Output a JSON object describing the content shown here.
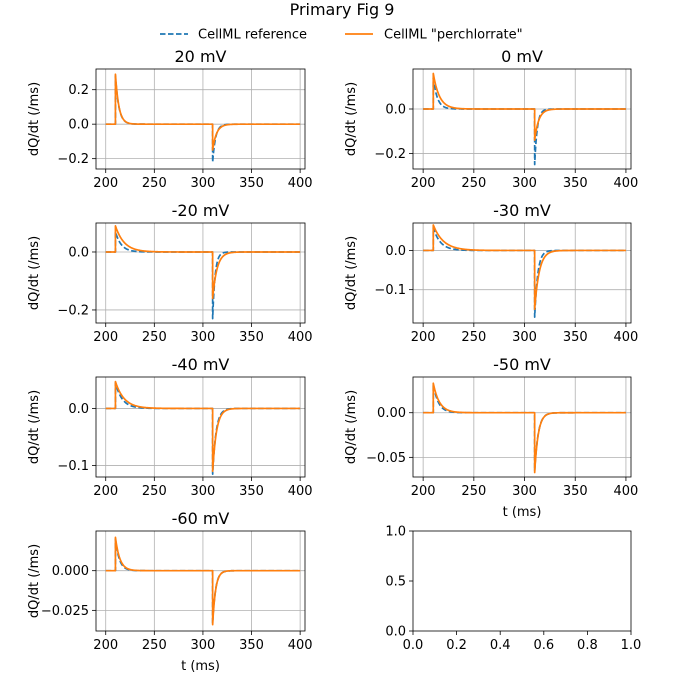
{
  "figure": {
    "title": "Primary Fig 9"
  },
  "legend": [
    {
      "label": "CellML reference",
      "color": "#1f77b4",
      "dashed": true
    },
    {
      "label": "CellML \"perchlorrate\"",
      "color": "#ff7f0e",
      "dashed": false
    }
  ],
  "chart_data": [
    {
      "type": "line",
      "title": "20 mV",
      "xlabel": "",
      "ylabel": "dQ/dt (/ms)",
      "xlim": [
        190,
        405
      ],
      "ylim": [
        -0.26,
        0.32
      ],
      "xticks": [
        200,
        250,
        300,
        350,
        400
      ],
      "xtick_labels": [
        "200",
        "250",
        "300",
        "350",
        "400"
      ],
      "yticks": [
        -0.2,
        0.0,
        0.2
      ],
      "ytick_labels": [
        "−0.2",
        "0.0",
        "0.2"
      ],
      "grid": true,
      "series": [
        {
          "name": "CellML reference",
          "color": "#1f77b4",
          "dashed": true,
          "on_peak": 0.28,
          "on_tau": 3.5,
          "off_peak": -0.22,
          "off_tau": 3.0
        },
        {
          "name": "CellML \"perchlorrate\"",
          "color": "#ff7f0e",
          "dashed": false,
          "on_peak": 0.29,
          "on_tau": 3.5,
          "off_peak": -0.15,
          "off_tau": 4.0
        }
      ]
    },
    {
      "type": "line",
      "title": "0 mV",
      "xlabel": "",
      "ylabel": "dQ/dt (/ms)",
      "xlim": [
        190,
        405
      ],
      "ylim": [
        -0.27,
        0.18
      ],
      "xticks": [
        200,
        250,
        300,
        350,
        400
      ],
      "xtick_labels": [
        "200",
        "250",
        "300",
        "350",
        "400"
      ],
      "yticks": [
        -0.2,
        0.0
      ],
      "ytick_labels": [
        "−0.2",
        "0.0"
      ],
      "grid": true,
      "series": [
        {
          "name": "CellML reference",
          "color": "#1f77b4",
          "dashed": true,
          "on_peak": 0.14,
          "on_tau": 4.0,
          "off_peak": -0.25,
          "off_tau": 2.5
        },
        {
          "name": "CellML \"perchlorrate\"",
          "color": "#ff7f0e",
          "dashed": false,
          "on_peak": 0.16,
          "on_tau": 6.0,
          "off_peak": -0.14,
          "off_tau": 4.0
        }
      ]
    },
    {
      "type": "line",
      "title": "-20 mV",
      "xlabel": "",
      "ylabel": "dQ/dt (/ms)",
      "xlim": [
        190,
        405
      ],
      "ylim": [
        -0.245,
        0.1
      ],
      "xticks": [
        200,
        250,
        300,
        350,
        400
      ],
      "xtick_labels": [
        "200",
        "250",
        "300",
        "350",
        "400"
      ],
      "yticks": [
        -0.2,
        0.0
      ],
      "ytick_labels": [
        "−0.2",
        "0.0"
      ],
      "grid": true,
      "series": [
        {
          "name": "CellML reference",
          "color": "#1f77b4",
          "dashed": true,
          "on_peak": 0.07,
          "on_tau": 6.0,
          "off_peak": -0.23,
          "off_tau": 2.5
        },
        {
          "name": "CellML \"perchlorrate\"",
          "color": "#ff7f0e",
          "dashed": false,
          "on_peak": 0.09,
          "on_tau": 9.0,
          "off_peak": -0.16,
          "off_tau": 4.5
        }
      ]
    },
    {
      "type": "line",
      "title": "-30 mV",
      "xlabel": "",
      "ylabel": "dQ/dt (/ms)",
      "xlim": [
        190,
        405
      ],
      "ylim": [
        -0.185,
        0.07
      ],
      "xticks": [
        200,
        250,
        300,
        350,
        400
      ],
      "xtick_labels": [
        "200",
        "250",
        "300",
        "350",
        "400"
      ],
      "yticks": [
        -0.1,
        0.0
      ],
      "ytick_labels": [
        "−0.1",
        "0.0"
      ],
      "grid": true,
      "series": [
        {
          "name": "CellML reference",
          "color": "#1f77b4",
          "dashed": true,
          "on_peak": 0.058,
          "on_tau": 7.0,
          "off_peak": -0.17,
          "off_tau": 3.0
        },
        {
          "name": "CellML \"perchlorrate\"",
          "color": "#ff7f0e",
          "dashed": false,
          "on_peak": 0.065,
          "on_tau": 10.0,
          "off_peak": -0.15,
          "off_tau": 4.5
        }
      ]
    },
    {
      "type": "line",
      "title": "-40 mV",
      "xlabel": "",
      "ylabel": "dQ/dt (/ms)",
      "xlim": [
        190,
        405
      ],
      "ylim": [
        -0.12,
        0.055
      ],
      "xticks": [
        200,
        250,
        300,
        350,
        400
      ],
      "xtick_labels": [
        "200",
        "250",
        "300",
        "350",
        "400"
      ],
      "yticks": [
        -0.1,
        0.0
      ],
      "ytick_labels": [
        "−0.1",
        "0.0"
      ],
      "grid": true,
      "series": [
        {
          "name": "CellML reference",
          "color": "#1f77b4",
          "dashed": true,
          "on_peak": 0.045,
          "on_tau": 7.0,
          "off_peak": -0.115,
          "off_tau": 3.5
        },
        {
          "name": "CellML \"perchlorrate\"",
          "color": "#ff7f0e",
          "dashed": false,
          "on_peak": 0.047,
          "on_tau": 9.0,
          "off_peak": -0.11,
          "off_tau": 4.0
        }
      ]
    },
    {
      "type": "line",
      "title": "-50 mV",
      "xlabel": "t (ms)",
      "ylabel": "dQ/dt (/ms)",
      "xlim": [
        190,
        405
      ],
      "ylim": [
        -0.072,
        0.04
      ],
      "xticks": [
        200,
        250,
        300,
        350,
        400
      ],
      "xtick_labels": [
        "200",
        "250",
        "300",
        "350",
        "400"
      ],
      "yticks": [
        -0.05,
        0.0
      ],
      "ytick_labels": [
        "−0.05",
        "0.00"
      ],
      "grid": true,
      "series": [
        {
          "name": "CellML reference",
          "color": "#1f77b4",
          "dashed": true,
          "on_peak": 0.032,
          "on_tau": 5.0,
          "off_peak": -0.065,
          "off_tau": 3.5
        },
        {
          "name": "CellML \"perchlorrate\"",
          "color": "#ff7f0e",
          "dashed": false,
          "on_peak": 0.033,
          "on_tau": 6.0,
          "off_peak": -0.067,
          "off_tau": 3.5
        }
      ]
    },
    {
      "type": "line",
      "title": "-60 mV",
      "xlabel": "t (ms)",
      "ylabel": "dQ/dt (/ms)",
      "xlim": [
        190,
        405
      ],
      "ylim": [
        -0.038,
        0.025
      ],
      "xticks": [
        200,
        250,
        300,
        350,
        400
      ],
      "xtick_labels": [
        "200",
        "250",
        "300",
        "350",
        "400"
      ],
      "yticks": [
        -0.025,
        0.0
      ],
      "ytick_labels": [
        "−0.025",
        "0.000"
      ],
      "grid": true,
      "series": [
        {
          "name": "CellML reference",
          "color": "#1f77b4",
          "dashed": true,
          "on_peak": 0.02,
          "on_tau": 4.0,
          "off_peak": -0.033,
          "off_tau": 3.0
        },
        {
          "name": "CellML \"perchlorrate\"",
          "color": "#ff7f0e",
          "dashed": false,
          "on_peak": 0.021,
          "on_tau": 4.5,
          "off_peak": -0.034,
          "off_tau": 3.0
        }
      ]
    },
    {
      "type": "empty",
      "title": "",
      "xlabel": "",
      "ylabel": "",
      "xlim": [
        0,
        1
      ],
      "ylim": [
        0,
        1
      ],
      "xticks": [
        0,
        0.2,
        0.4,
        0.6,
        0.8,
        1.0
      ],
      "xtick_labels": [
        "0.0",
        "0.2",
        "0.4",
        "0.6",
        "0.8",
        "1.0"
      ],
      "yticks": [
        0,
        0.5,
        1.0
      ],
      "ytick_labels": [
        "0.0",
        "0.5",
        "1.0"
      ],
      "grid": false,
      "series": []
    }
  ]
}
